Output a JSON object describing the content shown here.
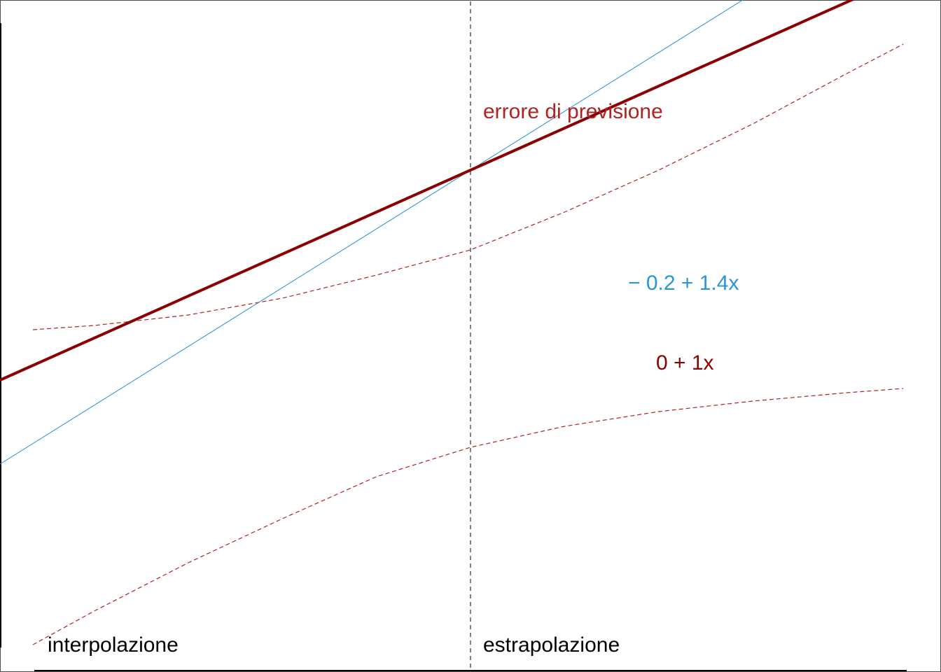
{
  "chart_data": {
    "type": "line",
    "title": "",
    "xlabel": "",
    "ylabel": "",
    "grid": false,
    "axes_ticks": false,
    "xlim": [
      0,
      1
    ],
    "ylim": [
      -1,
      1
    ],
    "divider_x": 0.5,
    "series": [
      {
        "name": "0 + 1x",
        "intercept": 0,
        "slope": 1,
        "color": "#8B0000",
        "style": "solid-thick"
      },
      {
        "name": "− 0.2 + 1.4x",
        "intercept": -0.2,
        "slope": 1.4,
        "color": "#2B95D5",
        "style": "solid-thin"
      }
    ],
    "prediction_band": {
      "label": "errore di previsione",
      "color": "#B22222",
      "style": "dashed",
      "x": [
        0.035,
        0.1,
        0.2,
        0.3,
        0.4,
        0.5,
        0.6,
        0.7,
        0.8,
        0.9,
        0.96
      ],
      "upper": [
        0.12,
        0.13,
        0.155,
        0.195,
        0.25,
        0.31,
        0.4,
        0.5,
        0.61,
        0.73,
        0.8
      ],
      "lower": [
        -0.63,
        -0.55,
        -0.435,
        -0.33,
        -0.23,
        -0.16,
        -0.11,
        -0.075,
        -0.05,
        -0.03,
        -0.02
      ]
    },
    "annotations": {
      "interpolation": "interpolazione",
      "extrapolation": "estrapolazione"
    }
  }
}
